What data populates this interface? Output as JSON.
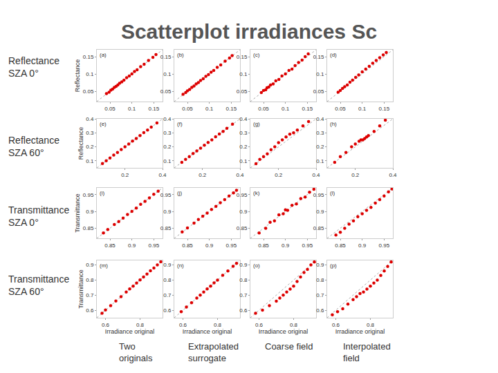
{
  "title": "Scatterplot irradiances Sc",
  "row_labels": [
    [
      "Reflectance",
      "SZA 0°"
    ],
    [
      "Reflectance",
      "SZA 60°"
    ],
    [
      "Transmittance",
      "SZA 0°"
    ],
    [
      "Transmittance",
      "SZA 60°"
    ]
  ],
  "column_labels": [
    [
      "Two",
      "originals"
    ],
    [
      "Extrapolated",
      "surrogate"
    ],
    [
      "Coarse field"
    ],
    [
      "Interpolated",
      "field"
    ]
  ],
  "chart_data": [
    {
      "type": "scatter",
      "title": "(a)",
      "ylabel": "Reflectance",
      "color": "#dd0000",
      "marker": "circle",
      "xlim": [
        0.02,
        0.17
      ],
      "ylim": [
        0.02,
        0.17
      ],
      "xticks": [
        0.05,
        0.1,
        0.15
      ],
      "yticks": [
        0.05,
        0.1,
        0.15
      ],
      "x": [
        0.042,
        0.048,
        0.052,
        0.056,
        0.06,
        0.064,
        0.068,
        0.072,
        0.077,
        0.082,
        0.088,
        0.094,
        0.1,
        0.106,
        0.112,
        0.12,
        0.128,
        0.138,
        0.148,
        0.155
      ],
      "values": [
        0.043,
        0.047,
        0.053,
        0.056,
        0.061,
        0.064,
        0.068,
        0.073,
        0.077,
        0.082,
        0.089,
        0.094,
        0.1,
        0.107,
        0.112,
        0.121,
        0.128,
        0.139,
        0.148,
        0.156
      ]
    },
    {
      "type": "scatter",
      "title": "(b)",
      "color": "#dd0000",
      "marker": "circle",
      "xlim": [
        0.02,
        0.17
      ],
      "ylim": [
        0.02,
        0.17
      ],
      "xticks": [
        0.05,
        0.1,
        0.15
      ],
      "yticks": [
        0.05,
        0.1,
        0.15
      ],
      "x": [
        0.04,
        0.046,
        0.05,
        0.055,
        0.06,
        0.065,
        0.07,
        0.075,
        0.08,
        0.086,
        0.092,
        0.098,
        0.104,
        0.11,
        0.118,
        0.126,
        0.136,
        0.146,
        0.152
      ],
      "values": [
        0.041,
        0.046,
        0.051,
        0.055,
        0.061,
        0.065,
        0.071,
        0.075,
        0.081,
        0.086,
        0.093,
        0.098,
        0.105,
        0.11,
        0.119,
        0.126,
        0.137,
        0.146,
        0.153
      ]
    },
    {
      "type": "scatter",
      "title": "(c)",
      "color": "#dd0000",
      "marker": "circle",
      "xlim": [
        0.02,
        0.17
      ],
      "ylim": [
        0.02,
        0.17
      ],
      "xticks": [
        0.05,
        0.1,
        0.15
      ],
      "yticks": [
        0.05,
        0.1,
        0.15
      ],
      "x": [
        0.045,
        0.05,
        0.055,
        0.058,
        0.062,
        0.066,
        0.072,
        0.078,
        0.085,
        0.092,
        0.1,
        0.108,
        0.115,
        0.122,
        0.13,
        0.138,
        0.145,
        0.152
      ],
      "values": [
        0.046,
        0.052,
        0.054,
        0.06,
        0.062,
        0.068,
        0.071,
        0.08,
        0.084,
        0.094,
        0.1,
        0.11,
        0.114,
        0.124,
        0.133,
        0.14,
        0.15,
        0.158
      ]
    },
    {
      "type": "scatter",
      "title": "(d)",
      "color": "#dd0000",
      "marker": "circle",
      "xlim": [
        0.02,
        0.17
      ],
      "ylim": [
        0.02,
        0.17
      ],
      "xticks": [
        0.05,
        0.1,
        0.15
      ],
      "yticks": [
        0.05,
        0.1,
        0.15
      ],
      "x": [
        0.045,
        0.05,
        0.055,
        0.06,
        0.066,
        0.072,
        0.078,
        0.085,
        0.092,
        0.1,
        0.108,
        0.116,
        0.124,
        0.132,
        0.14,
        0.148,
        0.155
      ],
      "values": [
        0.047,
        0.052,
        0.058,
        0.063,
        0.068,
        0.076,
        0.082,
        0.09,
        0.097,
        0.106,
        0.114,
        0.122,
        0.131,
        0.139,
        0.147,
        0.155,
        0.162
      ]
    },
    {
      "type": "scatter",
      "title": "(e)",
      "ylabel": "Reflectance",
      "color": "#dd0000",
      "marker": "circle",
      "xlim": [
        0.05,
        0.4
      ],
      "ylim": [
        0.05,
        0.4
      ],
      "xticks": [
        0.2,
        0.4
      ],
      "yticks": [
        0.1,
        0.2,
        0.3,
        0.4
      ],
      "x": [
        0.08,
        0.1,
        0.12,
        0.14,
        0.16,
        0.18,
        0.2,
        0.22,
        0.24,
        0.26,
        0.28,
        0.3,
        0.32,
        0.34,
        0.37
      ],
      "values": [
        0.081,
        0.1,
        0.12,
        0.141,
        0.16,
        0.181,
        0.2,
        0.22,
        0.241,
        0.26,
        0.28,
        0.301,
        0.32,
        0.341,
        0.37
      ]
    },
    {
      "type": "scatter",
      "title": "(f)",
      "color": "#dd0000",
      "marker": "circle",
      "xlim": [
        0.05,
        0.4
      ],
      "ylim": [
        0.05,
        0.4
      ],
      "xticks": [
        0.2,
        0.4
      ],
      "yticks": [
        0.1,
        0.2,
        0.3,
        0.4
      ],
      "x": [
        0.09,
        0.11,
        0.13,
        0.15,
        0.17,
        0.19,
        0.21,
        0.23,
        0.25,
        0.27,
        0.29,
        0.31,
        0.33,
        0.36
      ],
      "values": [
        0.09,
        0.111,
        0.13,
        0.152,
        0.171,
        0.19,
        0.212,
        0.231,
        0.25,
        0.272,
        0.291,
        0.31,
        0.332,
        0.362
      ]
    },
    {
      "type": "scatter",
      "title": "(g)",
      "color": "#dd0000",
      "marker": "circle",
      "xlim": [
        0.05,
        0.4
      ],
      "ylim": [
        0.05,
        0.4
      ],
      "xticks": [
        0.2,
        0.4
      ],
      "yticks": [
        0.1,
        0.2,
        0.3,
        0.4
      ],
      "x": [
        0.08,
        0.1,
        0.12,
        0.14,
        0.16,
        0.18,
        0.2,
        0.22,
        0.24,
        0.26,
        0.28,
        0.3,
        0.33,
        0.36
      ],
      "values": [
        0.08,
        0.11,
        0.13,
        0.15,
        0.18,
        0.2,
        0.23,
        0.25,
        0.27,
        0.29,
        0.3,
        0.32,
        0.35,
        0.38
      ]
    },
    {
      "type": "scatter",
      "title": "(h)",
      "color": "#dd0000",
      "marker": "circle",
      "xlim": [
        0.05,
        0.4
      ],
      "ylim": [
        0.05,
        0.4
      ],
      "xticks": [
        0.2,
        0.4
      ],
      "yticks": [
        0.1,
        0.2,
        0.3,
        0.4
      ],
      "x": [
        0.09,
        0.12,
        0.15,
        0.18,
        0.2,
        0.22,
        0.23,
        0.24,
        0.25,
        0.26,
        0.27,
        0.3,
        0.33,
        0.36
      ],
      "values": [
        0.09,
        0.13,
        0.16,
        0.2,
        0.22,
        0.24,
        0.25,
        0.25,
        0.26,
        0.27,
        0.28,
        0.31,
        0.35,
        0.39
      ]
    },
    {
      "type": "scatter",
      "title": "(i)",
      "ylabel": "Transmittance",
      "color": "#dd0000",
      "marker": "circle",
      "xlim": [
        0.82,
        0.97
      ],
      "ylim": [
        0.82,
        0.97
      ],
      "xticks": [
        0.85,
        0.9,
        0.95
      ],
      "yticks": [
        0.85,
        0.9,
        0.95
      ],
      "x": [
        0.835,
        0.845,
        0.86,
        0.87,
        0.88,
        0.89,
        0.9,
        0.91,
        0.92,
        0.93,
        0.94,
        0.95,
        0.96
      ],
      "values": [
        0.836,
        0.846,
        0.861,
        0.87,
        0.88,
        0.891,
        0.9,
        0.91,
        0.921,
        0.93,
        0.94,
        0.951,
        0.96
      ]
    },
    {
      "type": "scatter",
      "title": "(j)",
      "color": "#dd0000",
      "marker": "circle",
      "xlim": [
        0.82,
        0.97
      ],
      "ylim": [
        0.82,
        0.97
      ],
      "xticks": [
        0.85,
        0.9,
        0.95
      ],
      "yticks": [
        0.85,
        0.9,
        0.95
      ],
      "x": [
        0.838,
        0.85,
        0.865,
        0.875,
        0.885,
        0.895,
        0.905,
        0.915,
        0.925,
        0.935,
        0.945,
        0.955,
        0.962
      ],
      "values": [
        0.839,
        0.851,
        0.865,
        0.876,
        0.886,
        0.895,
        0.906,
        0.915,
        0.926,
        0.935,
        0.946,
        0.955,
        0.963
      ]
    },
    {
      "type": "scatter",
      "title": "(k)",
      "color": "#dd0000",
      "marker": "circle",
      "xlim": [
        0.82,
        0.97
      ],
      "ylim": [
        0.82,
        0.97
      ],
      "xticks": [
        0.85,
        0.9,
        0.95
      ],
      "yticks": [
        0.85,
        0.9,
        0.95
      ],
      "x": [
        0.84,
        0.855,
        0.865,
        0.875,
        0.885,
        0.895,
        0.9,
        0.905,
        0.915,
        0.925,
        0.935,
        0.945,
        0.955,
        0.965
      ],
      "values": [
        0.836,
        0.85,
        0.868,
        0.872,
        0.89,
        0.893,
        0.905,
        0.903,
        0.918,
        0.922,
        0.938,
        0.943,
        0.957,
        0.966
      ]
    },
    {
      "type": "scatter",
      "title": "(l)",
      "color": "#dd0000",
      "marker": "circle",
      "xlim": [
        0.82,
        0.97
      ],
      "ylim": [
        0.82,
        0.97
      ],
      "xticks": [
        0.85,
        0.9,
        0.95
      ],
      "yticks": [
        0.85,
        0.9,
        0.95
      ],
      "x": [
        0.84,
        0.85,
        0.86,
        0.87,
        0.88,
        0.89,
        0.9,
        0.91,
        0.92,
        0.93,
        0.94,
        0.95,
        0.96,
        0.968
      ],
      "values": [
        0.83,
        0.838,
        0.85,
        0.862,
        0.872,
        0.884,
        0.893,
        0.903,
        0.912,
        0.925,
        0.935,
        0.946,
        0.958,
        0.967
      ]
    },
    {
      "type": "scatter",
      "title": "(m)",
      "ylabel": "Transmittance",
      "xlabel": "Irradiance original",
      "color": "#dd0000",
      "marker": "circle",
      "xlim": [
        0.55,
        0.93
      ],
      "ylim": [
        0.55,
        0.93
      ],
      "xticks": [
        0.6,
        0.8
      ],
      "yticks": [
        0.6,
        0.7,
        0.8,
        0.9
      ],
      "x": [
        0.58,
        0.6,
        0.63,
        0.66,
        0.69,
        0.72,
        0.74,
        0.76,
        0.78,
        0.8,
        0.82,
        0.84,
        0.86,
        0.88,
        0.9,
        0.92
      ],
      "values": [
        0.58,
        0.601,
        0.63,
        0.661,
        0.69,
        0.72,
        0.741,
        0.76,
        0.78,
        0.801,
        0.82,
        0.84,
        0.861,
        0.88,
        0.9,
        0.921
      ]
    },
    {
      "type": "scatter",
      "title": "(n)",
      "xlabel": "Irradiance original",
      "color": "#dd0000",
      "marker": "circle",
      "xlim": [
        0.55,
        0.93
      ],
      "ylim": [
        0.55,
        0.93
      ],
      "xticks": [
        0.6,
        0.8
      ],
      "yticks": [
        0.6,
        0.7,
        0.8,
        0.9
      ],
      "x": [
        0.59,
        0.62,
        0.65,
        0.68,
        0.7,
        0.72,
        0.74,
        0.76,
        0.78,
        0.8,
        0.83,
        0.86,
        0.89,
        0.91
      ],
      "values": [
        0.59,
        0.621,
        0.65,
        0.681,
        0.7,
        0.72,
        0.741,
        0.76,
        0.781,
        0.8,
        0.831,
        0.86,
        0.891,
        0.91
      ]
    },
    {
      "type": "scatter",
      "title": "(o)",
      "xlabel": "Irradiance original",
      "color": "#dd0000",
      "marker": "circle",
      "xlim": [
        0.55,
        0.93
      ],
      "ylim": [
        0.55,
        0.93
      ],
      "xticks": [
        0.6,
        0.8
      ],
      "yticks": [
        0.6,
        0.7,
        0.8,
        0.9
      ],
      "x": [
        0.58,
        0.62,
        0.66,
        0.7,
        0.72,
        0.74,
        0.76,
        0.78,
        0.8,
        0.82,
        0.84,
        0.86,
        0.88,
        0.9,
        0.92
      ],
      "values": [
        0.58,
        0.6,
        0.63,
        0.66,
        0.68,
        0.7,
        0.72,
        0.74,
        0.76,
        0.79,
        0.82,
        0.85,
        0.87,
        0.9,
        0.92
      ]
    },
    {
      "type": "scatter",
      "title": "(p)",
      "xlabel": "Irradiance original",
      "color": "#dd0000",
      "marker": "circle",
      "xlim": [
        0.55,
        0.93
      ],
      "ylim": [
        0.55,
        0.93
      ],
      "xticks": [
        0.6,
        0.8
      ],
      "yticks": [
        0.6,
        0.7,
        0.8,
        0.9
      ],
      "x": [
        0.58,
        0.61,
        0.64,
        0.67,
        0.7,
        0.72,
        0.74,
        0.76,
        0.78,
        0.8,
        0.82,
        0.84,
        0.86,
        0.88,
        0.9,
        0.92
      ],
      "values": [
        0.57,
        0.59,
        0.61,
        0.64,
        0.67,
        0.69,
        0.71,
        0.72,
        0.74,
        0.76,
        0.78,
        0.8,
        0.83,
        0.86,
        0.89,
        0.92
      ]
    }
  ]
}
